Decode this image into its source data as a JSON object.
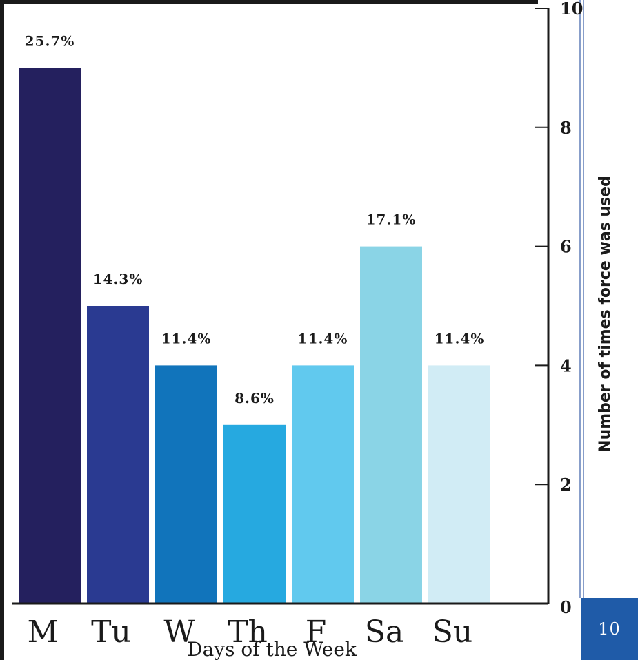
{
  "page": {
    "number": "10",
    "accent_color": "#1f5ba8"
  },
  "chart_data": {
    "type": "bar",
    "categories": [
      "M",
      "Tu",
      "W",
      "Th",
      "F",
      "Sa",
      "Su"
    ],
    "values": [
      9,
      5,
      4,
      3,
      4,
      6,
      4
    ],
    "data_labels": [
      "25.7%",
      "14.3%",
      "11.4%",
      "8.6%",
      "11.4%",
      "17.1%",
      "11.4%"
    ],
    "colors": [
      "#24205e",
      "#2a3a91",
      "#1174bb",
      "#26a9e0",
      "#61c9ee",
      "#8ad4e6",
      "#d1ecf5"
    ],
    "xlabel": "Days of the Week",
    "ylabel": "Number of times force was used",
    "ylim": [
      0,
      10
    ],
    "yticks": [
      0,
      2,
      4,
      6,
      8,
      10
    ],
    "ytick_labels": [
      "0",
      "2",
      "4",
      "6",
      "8",
      "10"
    ],
    "y_axis_position": "right",
    "grid": false
  }
}
